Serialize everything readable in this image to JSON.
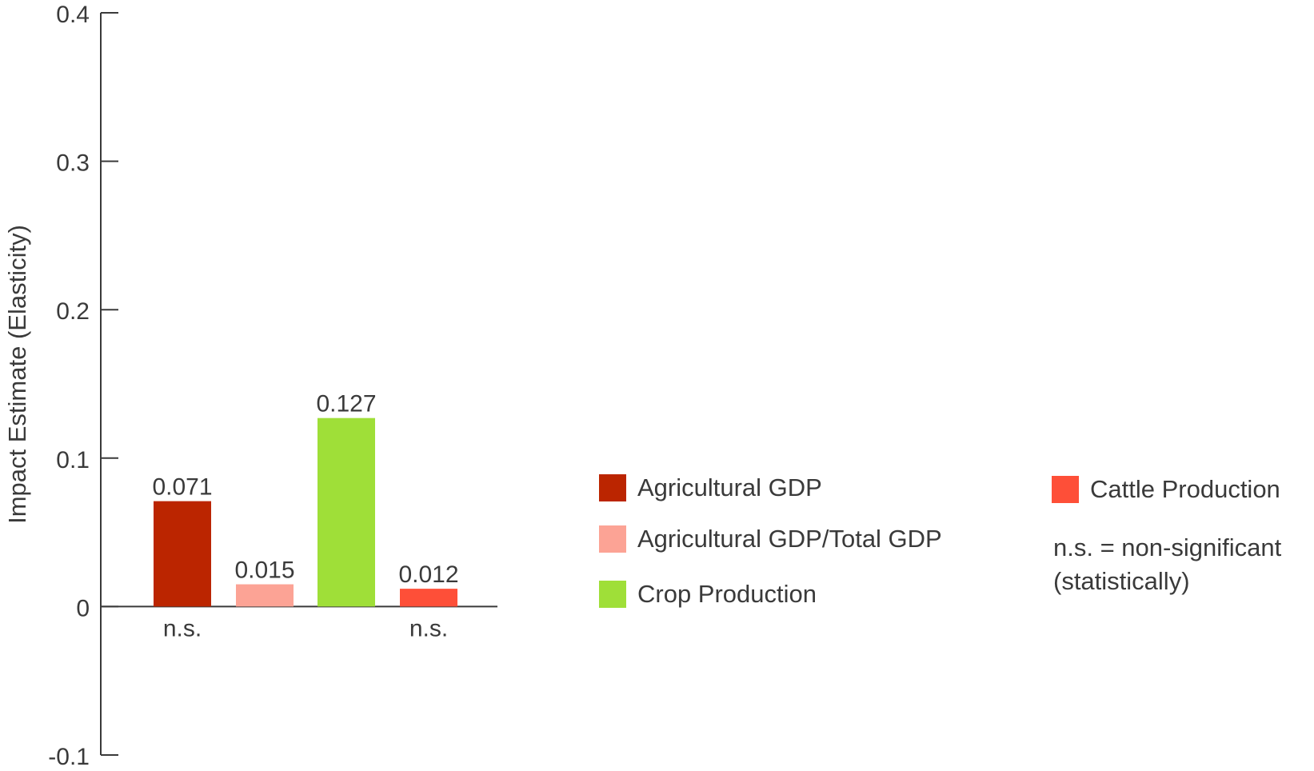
{
  "chart_data": {
    "type": "bar",
    "ylabel": "Impact Estimate (Elasticity)",
    "ylim": [
      -0.1,
      0.4
    ],
    "yticks": [
      -0.1,
      0,
      0.1,
      0.2,
      0.3,
      0.4
    ],
    "ytick_labels": [
      "-0.1",
      "0",
      "0.1",
      "0.2",
      "0.3",
      "0.4"
    ],
    "grid": false,
    "legend_placement": "right",
    "bars": [
      {
        "name": "Agricultural GDP",
        "value": 0.071,
        "label": "0.071",
        "sig_note": "n.s.",
        "color": "#bb2500"
      },
      {
        "name": "Agricultural GDP/Total GDP",
        "value": 0.015,
        "label": "0.015",
        "sig_note": "",
        "color": "#fca395"
      },
      {
        "name": "Crop Production",
        "value": 0.127,
        "label": "0.127",
        "sig_note": "",
        "color": "#9fdf38"
      },
      {
        "name": "Cattle Production",
        "value": 0.012,
        "label": "0.012",
        "sig_note": "n.s.",
        "color": "#fe4f38"
      }
    ]
  },
  "legend": {
    "items": [
      {
        "label": "Agricultural GDP",
        "color": "#bb2500"
      },
      {
        "label": "Agricultural GDP/Total GDP",
        "color": "#fca395"
      },
      {
        "label": "Crop Production",
        "color": "#9fdf38"
      },
      {
        "label": "Cattle Production",
        "color": "#fe4f38"
      }
    ],
    "note_line1": "n.s. = non-significant",
    "note_line2": "(statistically)"
  }
}
